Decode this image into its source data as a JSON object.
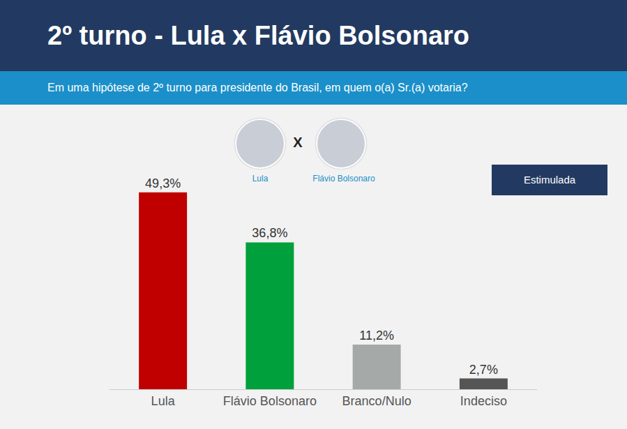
{
  "chart_data": {
    "type": "bar",
    "title": "2º turno - Lula x Flávio Bolsonaro",
    "subtitle": "Em uma hipótese de 2º turno para presidente do Brasil, em quem o(a) Sr.(a) votaria?",
    "annotations": [
      "Lula",
      "X",
      "Flávio Bolsonaro",
      "Estimulada"
    ],
    "categories": [
      "Lula",
      "Flávio Bolsonaro",
      "Branco/Nulo",
      "Indeciso"
    ],
    "values": [
      49.3,
      36.8,
      11.2,
      2.7
    ],
    "value_labels": [
      "49,3%",
      "36,8%",
      "11,2%",
      "2,7%"
    ],
    "colors": [
      "#c00000",
      "#00a03c",
      "#a5aaa9",
      "#555555"
    ],
    "data_labels": true,
    "tick_labels": "x",
    "grid": false
  }
}
